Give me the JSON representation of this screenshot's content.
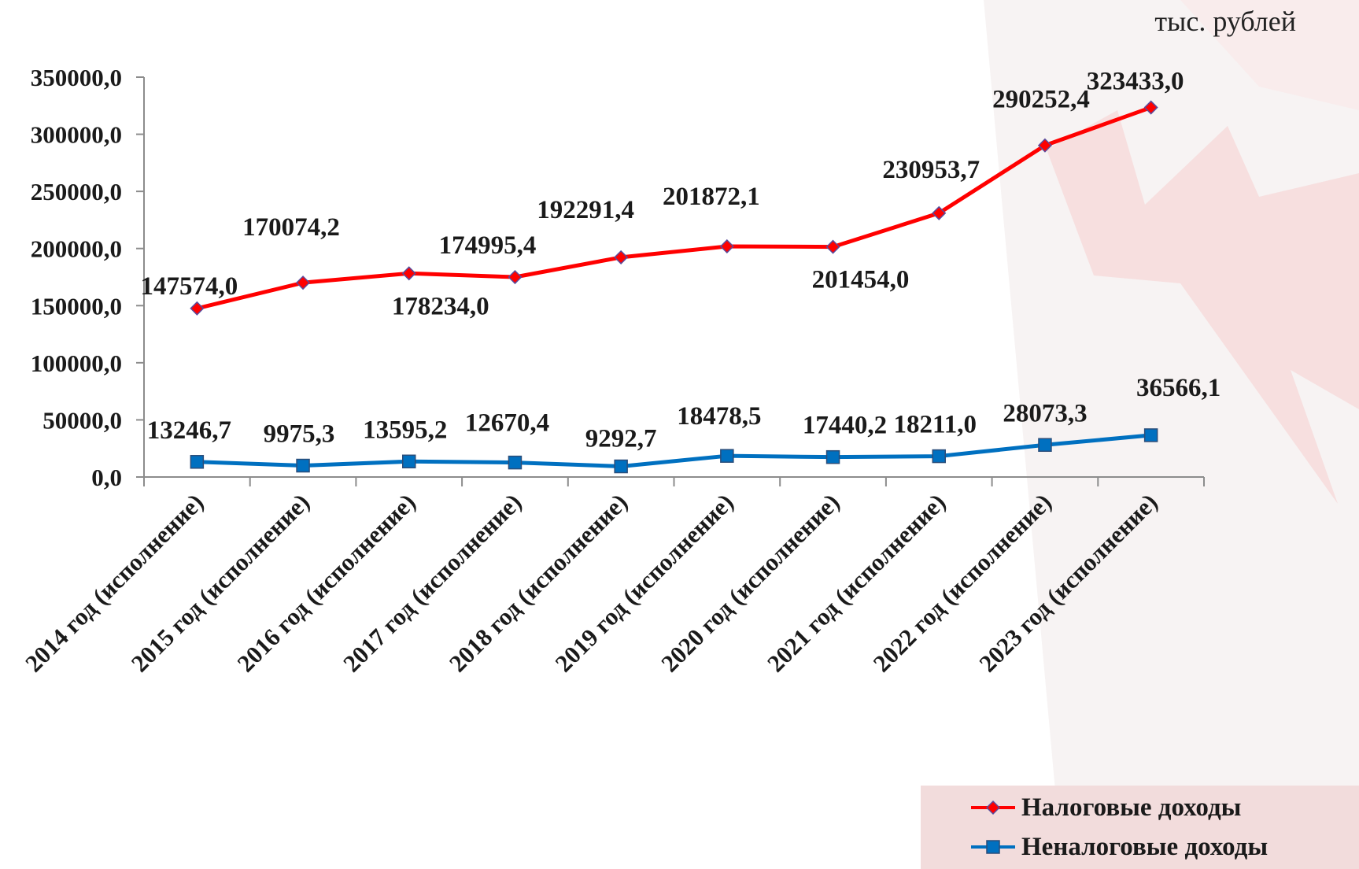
{
  "chart_data": {
    "type": "line",
    "unit_label": "тыс. рублей",
    "categories": [
      "2014 год (исполнение)",
      "2015 год (исполнение)",
      "2016 год (исполнение)",
      "2017 год (исполнение)",
      "2018 год (исполнение)",
      "2019 год (исполнение)",
      "2020 год (исполнение)",
      "2021 год (исполнение)",
      "2022 год (исполнение)",
      "2023 год (исполнение)"
    ],
    "series": [
      {
        "name": "Налоговые доходы",
        "color": "#ff0000",
        "marker": "diamond",
        "values": [
          147574.0,
          170074.2,
          178234.0,
          174995.4,
          192291.4,
          201872.1,
          201454.0,
          230953.7,
          290252.4,
          323433.0
        ],
        "labels": [
          "147574,0",
          "170074,2",
          "178234,0",
          "174995,4",
          "192291,4",
          "201872,1",
          "201454,0",
          "230953,7",
          "290252,4",
          "323433,0"
        ]
      },
      {
        "name": "Неналоговые доходы",
        "color": "#0070c0",
        "marker": "square",
        "values": [
          13246.7,
          9975.3,
          13595.2,
          12670.4,
          9292.7,
          18478.5,
          17440.2,
          18211.0,
          28073.3,
          36566.1
        ],
        "labels": [
          "13246,7",
          "9975,3",
          "13595,2",
          "12670,4",
          "9292,7",
          "18478,5",
          "17440,2",
          "18211,0",
          "28073,3",
          "36566,1"
        ]
      }
    ],
    "y_ticks": [
      "0,0",
      "50000,0",
      "100000,0",
      "150000,0",
      "200000,0",
      "250000,0",
      "300000,0",
      "350000,0"
    ],
    "ylim": [
      0,
      350000
    ],
    "grid": false,
    "legend_position": "bottom-right"
  },
  "legend": {
    "tax_label": "Налоговые доходы",
    "nontax_label": "Неналоговые доходы"
  }
}
